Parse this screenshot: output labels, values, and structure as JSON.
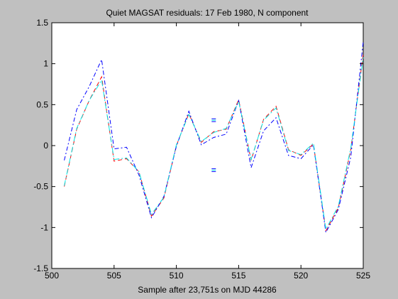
{
  "chart_data": {
    "type": "line",
    "title": "Quiet MAGSAT residuals: 17 Feb 1980, N component",
    "xlabel": "Sample after 23,751s on MJD 44286",
    "ylabel": "",
    "xlim": [
      500,
      525
    ],
    "ylim": [
      -1.5,
      1.5
    ],
    "xticks": [
      500,
      505,
      510,
      515,
      520,
      525
    ],
    "xtick_labels": [
      "500",
      "505",
      "510",
      "515",
      "520",
      "525"
    ],
    "yticks": [
      -1.5,
      -1,
      -0.5,
      0,
      0.5,
      1,
      1.5
    ],
    "ytick_labels": [
      "-1.5",
      "-1",
      "-0.5",
      "0",
      "0.5",
      "1",
      "1.5"
    ],
    "grid": false,
    "legend": "none",
    "x": [
      501,
      502,
      503,
      504,
      505,
      506,
      507,
      508,
      509,
      510,
      511,
      512,
      513,
      514,
      515,
      516,
      517,
      518,
      519,
      520,
      521,
      522,
      523,
      524,
      525
    ],
    "series": [
      {
        "color": "#ff0000",
        "dash": "6,4",
        "values": [
          -0.5,
          0.2,
          0.55,
          0.84,
          -0.19,
          -0.16,
          -0.32,
          -0.86,
          -0.64,
          0.0,
          0.39,
          0.04,
          0.17,
          0.2,
          0.56,
          -0.18,
          0.32,
          0.48,
          -0.05,
          -0.12,
          0.02,
          -1.04,
          -0.76,
          -0.05,
          1.12
        ]
      },
      {
        "color": "#0000ff",
        "dash": "6,3,2,3",
        "values": [
          -0.18,
          0.44,
          0.72,
          1.05,
          -0.04,
          -0.02,
          -0.36,
          -0.88,
          -0.62,
          -0.01,
          0.42,
          0.01,
          0.1,
          0.14,
          0.55,
          -0.27,
          0.18,
          0.34,
          -0.12,
          -0.16,
          0.01,
          -1.06,
          -0.78,
          -0.14,
          1.27
        ]
      },
      {
        "color": "#00e6e6",
        "dash": "8,3,2,3",
        "values": [
          -0.49,
          0.21,
          0.55,
          0.8,
          -0.17,
          -0.15,
          -0.32,
          -0.84,
          -0.63,
          0.01,
          0.38,
          0.05,
          0.16,
          0.21,
          0.54,
          -0.17,
          0.31,
          0.46,
          -0.06,
          -0.11,
          0.03,
          -1.02,
          -0.74,
          -0.03,
          1.08
        ]
      }
    ],
    "markers": [
      {
        "x": 513,
        "y": 0.31,
        "color": "#0000ff",
        "symbol": "="
      },
      {
        "x": 513,
        "y": -0.3,
        "color": "#0000ff",
        "symbol": "="
      }
    ]
  }
}
